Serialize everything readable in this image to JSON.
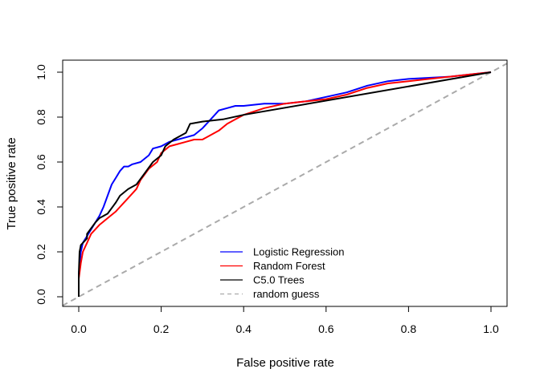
{
  "chart_data": {
    "type": "line",
    "title": "",
    "xlabel": "False positive rate",
    "ylabel": "True positive rate",
    "xlim": [
      0,
      1
    ],
    "ylim": [
      0,
      1
    ],
    "xticks": [
      0,
      0.2,
      0.4,
      0.6,
      0.8,
      1
    ],
    "yticks": [
      0,
      0.2,
      0.4,
      0.6,
      0.8,
      1
    ],
    "xtick_labels": [
      "0.0",
      "0.2",
      "0.4",
      "0.6",
      "0.8",
      "1.0"
    ],
    "ytick_labels": [
      "0.0",
      "0.2",
      "0.4",
      "0.6",
      "0.8",
      "1.0"
    ],
    "grid": false,
    "legend_position": "bottom-center",
    "series": [
      {
        "name": "Logistic Regression",
        "color": "#0000ff",
        "style": "solid",
        "x": [
          0,
          0,
          0.005,
          0.01,
          0.02,
          0.03,
          0.04,
          0.05,
          0.06,
          0.07,
          0.08,
          0.09,
          0.1,
          0.11,
          0.12,
          0.13,
          0.15,
          0.17,
          0.18,
          0.2,
          0.22,
          0.24,
          0.26,
          0.28,
          0.3,
          0.32,
          0.34,
          0.36,
          0.38,
          0.4,
          0.45,
          0.5,
          0.55,
          0.6,
          0.65,
          0.7,
          0.75,
          0.8,
          0.85,
          0.9,
          0.95,
          1
        ],
        "y": [
          0,
          0.1,
          0.2,
          0.24,
          0.27,
          0.3,
          0.33,
          0.36,
          0.4,
          0.45,
          0.5,
          0.53,
          0.56,
          0.58,
          0.58,
          0.59,
          0.6,
          0.63,
          0.66,
          0.67,
          0.69,
          0.7,
          0.71,
          0.72,
          0.75,
          0.79,
          0.83,
          0.84,
          0.85,
          0.85,
          0.86,
          0.86,
          0.87,
          0.89,
          0.91,
          0.94,
          0.96,
          0.97,
          0.975,
          0.98,
          0.99,
          1
        ]
      },
      {
        "name": "Random Forest",
        "color": "#ff0000",
        "style": "solid",
        "x": [
          0,
          0,
          0.005,
          0.01,
          0.02,
          0.03,
          0.05,
          0.07,
          0.09,
          0.1,
          0.12,
          0.14,
          0.15,
          0.17,
          0.19,
          0.2,
          0.22,
          0.24,
          0.26,
          0.28,
          0.3,
          0.32,
          0.34,
          0.36,
          0.38,
          0.4,
          0.45,
          0.5,
          0.55,
          0.6,
          0.65,
          0.7,
          0.75,
          0.8,
          0.85,
          0.9,
          0.95,
          1
        ],
        "y": [
          0,
          0.08,
          0.15,
          0.2,
          0.24,
          0.28,
          0.32,
          0.35,
          0.38,
          0.4,
          0.44,
          0.48,
          0.52,
          0.57,
          0.6,
          0.64,
          0.67,
          0.68,
          0.69,
          0.7,
          0.7,
          0.72,
          0.74,
          0.77,
          0.79,
          0.81,
          0.84,
          0.86,
          0.87,
          0.88,
          0.9,
          0.93,
          0.95,
          0.96,
          0.97,
          0.98,
          0.99,
          1
        ]
      },
      {
        "name": "C5.0 Trees",
        "color": "#000000",
        "style": "solid",
        "x": [
          0,
          0,
          0.002,
          0.005,
          0.02,
          0.02,
          0.04,
          0.05,
          0.07,
          0.09,
          0.1,
          0.12,
          0.14,
          0.16,
          0.18,
          0.2,
          0.21,
          0.23,
          0.26,
          0.27,
          0.3,
          0.35,
          0.4,
          1
        ],
        "y": [
          0,
          0.1,
          0.2,
          0.23,
          0.26,
          0.28,
          0.33,
          0.35,
          0.37,
          0.42,
          0.45,
          0.48,
          0.5,
          0.55,
          0.6,
          0.63,
          0.67,
          0.7,
          0.73,
          0.77,
          0.78,
          0.79,
          0.81,
          1
        ]
      },
      {
        "name": "random guess",
        "color": "#aaaaaa",
        "style": "dashed",
        "x": [
          -0.06,
          1.06
        ],
        "y": [
          -0.06,
          1.06
        ]
      }
    ]
  }
}
